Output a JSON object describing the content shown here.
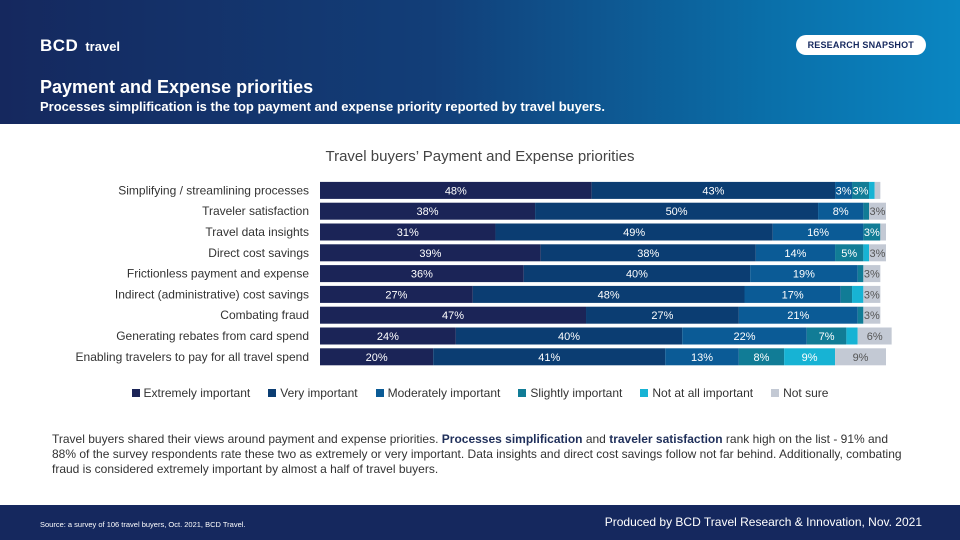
{
  "header": {
    "logo_text": "BCD",
    "logo_sub": "travel",
    "badge": "RESEARCH SNAPSHOT",
    "title": "Payment and Expense priorities",
    "subtitle": "Processes simplification is the top payment and expense priority reported by travel buyers."
  },
  "colors": {
    "header_dark": "#15285e",
    "header_light": "#0a86c2",
    "segments": [
      "#1b2457",
      "#0b3d72",
      "#0b5b96",
      "#117c96",
      "#17b3d4",
      "#c3c9d4"
    ]
  },
  "chart_data": {
    "type": "bar",
    "orientation": "horizontal",
    "stacked": true,
    "title": "Travel buyers’ Payment and Expense priorities",
    "categories": [
      "Simplifying / streamlining processes",
      "Traveler satisfaction",
      "Travel data insights",
      "Direct cost savings",
      "Frictionless payment and expense",
      "Indirect (administrative) cost savings",
      "Combating fraud",
      "Generating rebates from card spend",
      "Enabling travelers to pay for all travel spend"
    ],
    "series": [
      {
        "name": "Extremely important",
        "values": [
          48,
          38,
          31,
          39,
          36,
          27,
          47,
          24,
          20
        ]
      },
      {
        "name": "Very important",
        "values": [
          43,
          50,
          49,
          38,
          40,
          48,
          27,
          40,
          41
        ]
      },
      {
        "name": "Moderately important",
        "values": [
          3,
          8,
          16,
          14,
          19,
          17,
          21,
          22,
          13
        ]
      },
      {
        "name": "Slightly important",
        "values": [
          3,
          1,
          3,
          5,
          1,
          2,
          1,
          7,
          8
        ]
      },
      {
        "name": "Not at all important",
        "values": [
          1,
          0,
          0,
          1,
          0,
          2,
          0,
          2,
          9
        ]
      },
      {
        "name": "Not sure",
        "values": [
          1,
          3,
          1,
          3,
          3,
          3,
          3,
          6,
          9
        ]
      }
    ],
    "labels": [
      [
        "48%",
        "43%",
        "3%",
        "3%",
        "",
        ""
      ],
      [
        "38%",
        "50%",
        "8%",
        "",
        "",
        "3%"
      ],
      [
        "31%",
        "49%",
        "16%",
        "3%",
        "",
        ""
      ],
      [
        "39%",
        "38%",
        "14%",
        "5%",
        "",
        "3%"
      ],
      [
        "36%",
        "40%",
        "19%",
        "",
        "",
        "3%"
      ],
      [
        "27%",
        "48%",
        "17%",
        "",
        "",
        "3%"
      ],
      [
        "47%",
        "27%",
        "21%",
        "",
        "",
        "3%"
      ],
      [
        "24%",
        "40%",
        "22%",
        "7%",
        "",
        "6%"
      ],
      [
        "20%",
        "41%",
        "13%",
        "8%",
        "9%",
        "9%"
      ]
    ],
    "xlim": [
      0,
      100
    ],
    "legend_position": "bottom"
  },
  "body": {
    "text_1": "Travel buyers shared their views around payment and expense priorities. ",
    "bold_1": "Processes simplification",
    "text_2": " and ",
    "bold_2": "traveler satisfaction",
    "text_3": " rank high on the list - 91% and 88% of the survey respondents rate these two as extremely or very important. Data insights and direct cost savings follow not far behind. Additionally, combating fraud is considered extremely important by almost a half of travel buyers."
  },
  "footer": {
    "source": "Source: a survey of 106 travel buyers, Oct. 2021, BCD Travel.",
    "produced": "Produced by BCD Travel Research & Innovation, Nov. 2021"
  }
}
